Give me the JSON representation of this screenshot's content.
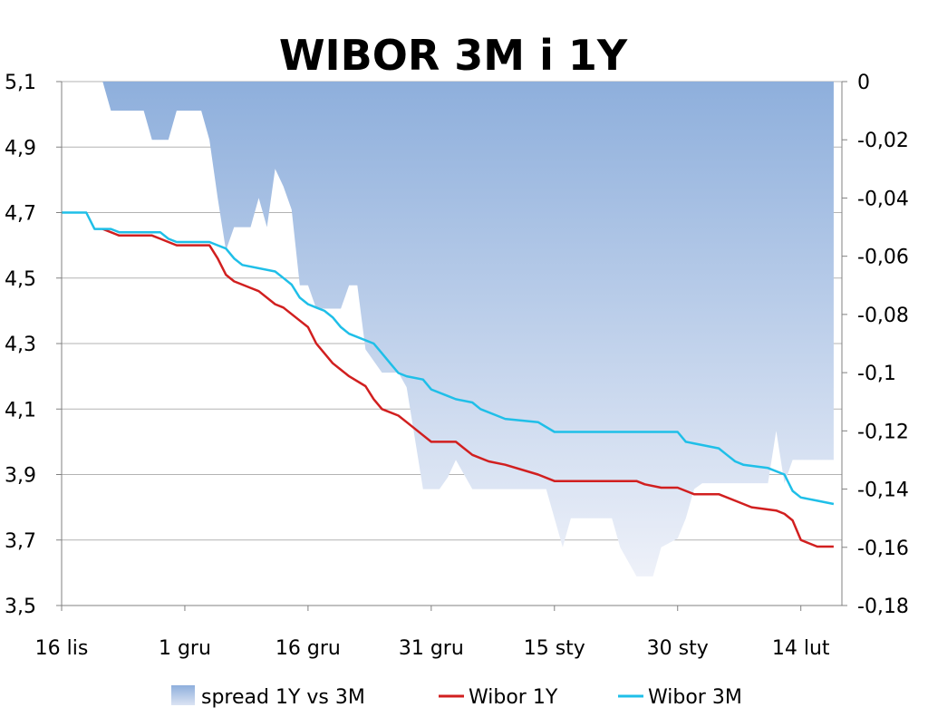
{
  "chart_data": {
    "type": "line",
    "title": "WIBOR 3M i 1Y",
    "categories": [
      "16 lis",
      "1 gru",
      "16 gru",
      "31 gru",
      "15 sty",
      "30 sty",
      "14 lut"
    ],
    "y_left": {
      "min": 3.5,
      "max": 5.1,
      "ticks": [
        "5,1",
        "4,9",
        "4,7",
        "4,5",
        "4,3",
        "4,1",
        "3,9",
        "3,7",
        "3,5"
      ]
    },
    "y_right": {
      "min": -0.18,
      "max": 0,
      "ticks": [
        "0",
        "-0,02",
        "-0,04",
        "-0,06",
        "-0,08",
        "-0,1",
        "-0,12",
        "-0,14",
        "-0,16",
        "-0,18"
      ]
    },
    "x_range_days": [
      0,
      95
    ],
    "grid": true,
    "legend_position": "bottom",
    "series": [
      {
        "name": "Wibor 3M",
        "axis": "left",
        "color": "#1fbfe8",
        "points": [
          [
            0,
            4.7
          ],
          [
            3,
            4.7
          ],
          [
            4,
            4.65
          ],
          [
            6,
            4.65
          ],
          [
            7,
            4.64
          ],
          [
            12,
            4.64
          ],
          [
            13,
            4.62
          ],
          [
            14,
            4.61
          ],
          [
            18,
            4.61
          ],
          [
            19,
            4.6
          ],
          [
            20,
            4.59
          ],
          [
            21,
            4.56
          ],
          [
            22,
            4.54
          ],
          [
            26,
            4.52
          ],
          [
            27,
            4.5
          ],
          [
            28,
            4.48
          ],
          [
            29,
            4.44
          ],
          [
            30,
            4.42
          ],
          [
            31,
            4.41
          ],
          [
            32,
            4.4
          ],
          [
            33,
            4.38
          ],
          [
            34,
            4.35
          ],
          [
            35,
            4.33
          ],
          [
            38,
            4.3
          ],
          [
            39,
            4.27
          ],
          [
            40,
            4.24
          ],
          [
            41,
            4.21
          ],
          [
            42,
            4.2
          ],
          [
            44,
            4.19
          ],
          [
            45,
            4.16
          ],
          [
            47,
            4.14
          ],
          [
            48,
            4.13
          ],
          [
            50,
            4.12
          ],
          [
            51,
            4.1
          ],
          [
            53,
            4.08
          ],
          [
            54,
            4.07
          ],
          [
            58,
            4.06
          ],
          [
            60,
            4.03
          ],
          [
            63,
            4.03
          ],
          [
            71,
            4.03
          ],
          [
            75,
            4.03
          ],
          [
            76,
            4.0
          ],
          [
            78,
            3.99
          ],
          [
            80,
            3.98
          ],
          [
            81,
            3.96
          ],
          [
            82,
            3.94
          ],
          [
            83,
            3.93
          ],
          [
            86,
            3.92
          ],
          [
            88,
            3.9
          ],
          [
            89,
            3.85
          ],
          [
            90,
            3.83
          ],
          [
            92,
            3.82
          ],
          [
            94,
            3.81
          ]
        ]
      },
      {
        "name": "Wibor 1Y",
        "axis": "left",
        "color": "#d11f1f",
        "points": [
          [
            5,
            4.65
          ],
          [
            6,
            4.64
          ],
          [
            7,
            4.63
          ],
          [
            11,
            4.63
          ],
          [
            12,
            4.62
          ],
          [
            13,
            4.61
          ],
          [
            14,
            4.6
          ],
          [
            18,
            4.6
          ],
          [
            19,
            4.56
          ],
          [
            20,
            4.51
          ],
          [
            21,
            4.49
          ],
          [
            23,
            4.47
          ],
          [
            24,
            4.46
          ],
          [
            26,
            4.42
          ],
          [
            27,
            4.41
          ],
          [
            29,
            4.37
          ],
          [
            30,
            4.35
          ],
          [
            31,
            4.3
          ],
          [
            33,
            4.24
          ],
          [
            34,
            4.22
          ],
          [
            35,
            4.2
          ],
          [
            37,
            4.17
          ],
          [
            38,
            4.13
          ],
          [
            39,
            4.1
          ],
          [
            41,
            4.08
          ],
          [
            42,
            4.06
          ],
          [
            44,
            4.02
          ],
          [
            45,
            4.0
          ],
          [
            48,
            4.0
          ],
          [
            49,
            3.98
          ],
          [
            50,
            3.96
          ],
          [
            52,
            3.94
          ],
          [
            54,
            3.93
          ],
          [
            58,
            3.9
          ],
          [
            60,
            3.88
          ],
          [
            63,
            3.88
          ],
          [
            70,
            3.88
          ],
          [
            71,
            3.87
          ],
          [
            73,
            3.86
          ],
          [
            75,
            3.86
          ],
          [
            77,
            3.84
          ],
          [
            80,
            3.84
          ],
          [
            82,
            3.82
          ],
          [
            84,
            3.8
          ],
          [
            87,
            3.79
          ],
          [
            88,
            3.78
          ],
          [
            89,
            3.76
          ],
          [
            90,
            3.7
          ],
          [
            91,
            3.69
          ],
          [
            92,
            3.68
          ],
          [
            94,
            3.68
          ]
        ]
      },
      {
        "name": "spread 1Y vs 3M",
        "axis": "right",
        "type": "area",
        "points": [
          [
            5,
            0
          ],
          [
            6,
            -0.01
          ],
          [
            10,
            -0.01
          ],
          [
            11,
            -0.02
          ],
          [
            13,
            -0.02
          ],
          [
            14,
            -0.01
          ],
          [
            17,
            -0.01
          ],
          [
            18,
            -0.02
          ],
          [
            19,
            -0.04
          ],
          [
            20,
            -0.058
          ],
          [
            21,
            -0.05
          ],
          [
            23,
            -0.05
          ],
          [
            24,
            -0.04
          ],
          [
            25,
            -0.05
          ],
          [
            26,
            -0.03
          ],
          [
            27,
            -0.036
          ],
          [
            28,
            -0.044
          ],
          [
            29,
            -0.07
          ],
          [
            30,
            -0.07
          ],
          [
            31,
            -0.078
          ],
          [
            34,
            -0.078
          ],
          [
            35,
            -0.07
          ],
          [
            36,
            -0.07
          ],
          [
            37,
            -0.092
          ],
          [
            39,
            -0.1
          ],
          [
            41,
            -0.1
          ],
          [
            42,
            -0.105
          ],
          [
            44,
            -0.14
          ],
          [
            46,
            -0.14
          ],
          [
            47,
            -0.136
          ],
          [
            48,
            -0.13
          ],
          [
            50,
            -0.14
          ],
          [
            59,
            -0.14
          ],
          [
            61,
            -0.16
          ],
          [
            62,
            -0.15
          ],
          [
            67,
            -0.15
          ],
          [
            68,
            -0.16
          ],
          [
            70,
            -0.17
          ],
          [
            72,
            -0.17
          ],
          [
            73,
            -0.16
          ],
          [
            75,
            -0.157
          ],
          [
            76,
            -0.15
          ],
          [
            77,
            -0.14
          ],
          [
            78,
            -0.138
          ],
          [
            86,
            -0.138
          ],
          [
            87,
            -0.12
          ],
          [
            88,
            -0.138
          ],
          [
            89,
            -0.13
          ],
          [
            91,
            -0.13
          ],
          [
            94,
            -0.13
          ]
        ]
      }
    ]
  }
}
